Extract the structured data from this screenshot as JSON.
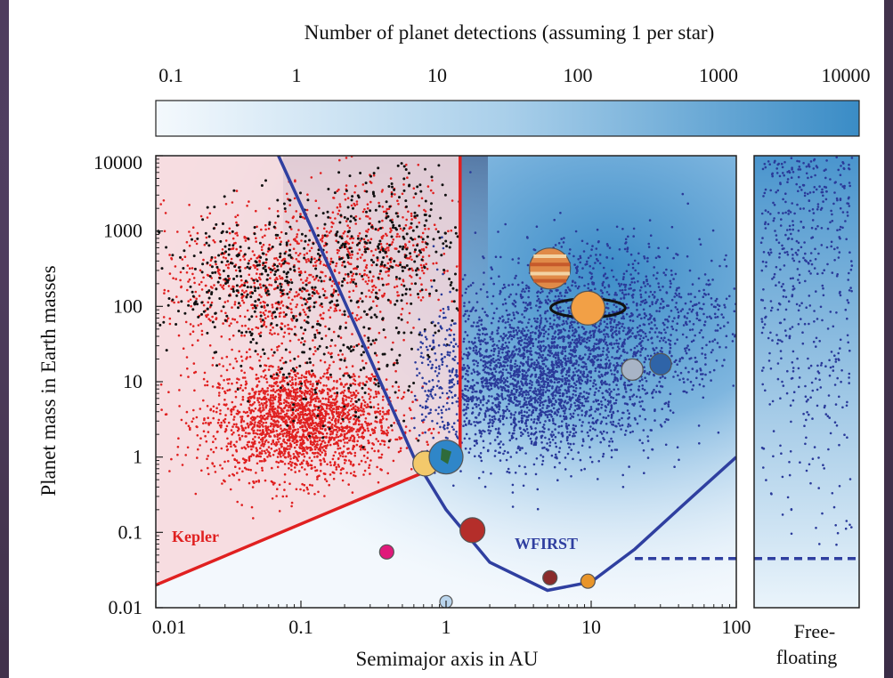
{
  "colorbar": {
    "label": "Number of planet detections (assuming 1 per star)",
    "ticks": [
      "0.1",
      "1",
      "10",
      "100",
      "1000",
      "10000"
    ],
    "range": [
      0.1,
      10000
    ],
    "scale": "log",
    "color_low": "#f2f8fd",
    "color_high": "#3a8cc6"
  },
  "chart_data": {
    "type": "scatter",
    "xlabel": "Semimajor axis in AU",
    "ylabel": "Planet mass in Earth masses",
    "xscale": "log",
    "yscale": "log",
    "xlim": [
      0.01,
      100
    ],
    "ylim": [
      0.01,
      10000
    ],
    "xticks": [
      "0.01",
      "0.1",
      "1",
      "10",
      "100"
    ],
    "yticks": [
      "0.01",
      "0.1",
      "1",
      "10",
      "100",
      "1000",
      "10000"
    ],
    "side_panel_label": "Free-\nfloating",
    "regions": [
      {
        "name": "Kepler",
        "color": "#e02020",
        "boundary": [
          [
            0.01,
            0.02
          ],
          [
            1.25,
            1.0
          ],
          [
            1.25,
            10000
          ]
        ]
      },
      {
        "name": "WFIRST",
        "color": "#2f3fa0",
        "curve": [
          [
            0.07,
            10000
          ],
          [
            0.15,
            400
          ],
          [
            0.3,
            20
          ],
          [
            0.6,
            1.0
          ],
          [
            1.0,
            0.2
          ],
          [
            2.0,
            0.04
          ],
          [
            5.0,
            0.017
          ],
          [
            10.0,
            0.022
          ],
          [
            20.0,
            0.06
          ],
          [
            50.0,
            0.3
          ],
          [
            100.0,
            1.0
          ]
        ],
        "free_floating_limit": 0.045,
        "dashed_from_x": 20
      }
    ],
    "series": [
      {
        "color": "#e02020",
        "clusters": [
          {
            "x": 0.1,
            "y": 3,
            "n": 2200
          },
          {
            "x": 0.05,
            "y": 200,
            "n": 600
          },
          {
            "x": 0.3,
            "y": 500,
            "n": 500
          }
        ]
      },
      {
        "color": "#111111",
        "clusters": [
          {
            "x": 0.05,
            "y": 200,
            "n": 350
          },
          {
            "x": 0.5,
            "y": 800,
            "n": 300
          },
          {
            "x": 0.2,
            "y": 20,
            "n": 150
          }
        ]
      },
      {
        "color": "#2a3a9a",
        "clusters": [
          {
            "x": 4,
            "y": 10,
            "n": 2600
          },
          {
            "x": 10,
            "y": 100,
            "n": 700
          },
          {
            "x": 30,
            "y": 50,
            "n": 400
          }
        ]
      }
    ],
    "free_floating": {
      "color": "#2a3a9a",
      "n": 520,
      "ylim": [
        0.05,
        10000
      ]
    },
    "solar_system": [
      {
        "name": "Mercury",
        "x": 0.39,
        "y": 0.055,
        "color": "#e0197a"
      },
      {
        "name": "Venus",
        "x": 0.72,
        "y": 0.82,
        "color": "#f3c96b"
      },
      {
        "name": "Earth",
        "x": 1.0,
        "y": 1.0,
        "color": "#2f86c8"
      },
      {
        "name": "Moon",
        "x": 1.0,
        "y": 0.012,
        "color": "#b9d4ec"
      },
      {
        "name": "Mars",
        "x": 1.52,
        "y": 0.107,
        "color": "#b42e2a"
      },
      {
        "name": "Jupiter",
        "x": 5.2,
        "y": 318,
        "color": "#e08a48"
      },
      {
        "name": "Saturn",
        "x": 9.5,
        "y": 95,
        "color": "#f2a046"
      },
      {
        "name": "Uranus",
        "x": 19.2,
        "y": 14.5,
        "color": "#a8b4c6"
      },
      {
        "name": "Neptune",
        "x": 30.1,
        "y": 17.1,
        "color": "#2f64a8"
      },
      {
        "name": "Ganymede",
        "x": 5.2,
        "y": 0.025,
        "color": "#8a2b2b"
      },
      {
        "name": "Titan",
        "x": 9.5,
        "y": 0.0225,
        "color": "#e8952a"
      }
    ]
  }
}
